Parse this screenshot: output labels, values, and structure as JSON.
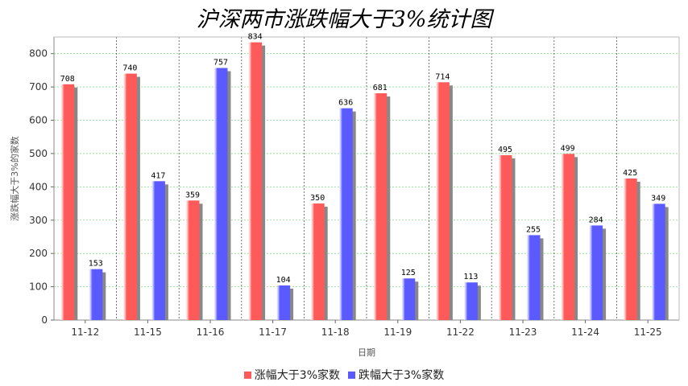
{
  "chart_data": {
    "type": "bar",
    "title": "沪深两市涨跌幅大于3%统计图",
    "xlabel": "日期",
    "ylabel": "涨跌幅大于3%的家数",
    "ylim": [
      0,
      850
    ],
    "yticks": [
      0,
      100,
      200,
      300,
      400,
      500,
      600,
      700,
      800
    ],
    "categories": [
      "11-12",
      "11-15",
      "11-16",
      "11-17",
      "11-18",
      "11-19",
      "11-22",
      "11-23",
      "11-24",
      "11-25"
    ],
    "series": [
      {
        "name": "涨幅大于3%家数",
        "color": "#ff5a5a",
        "values": [
          708,
          740,
          359,
          834,
          350,
          681,
          714,
          495,
          499,
          425
        ]
      },
      {
        "name": "跌幅大于3%家数",
        "color": "#5a5aff",
        "values": [
          153,
          417,
          757,
          104,
          636,
          125,
          113,
          255,
          284,
          349
        ]
      }
    ],
    "grid": true,
    "legend_position": "bottom"
  }
}
